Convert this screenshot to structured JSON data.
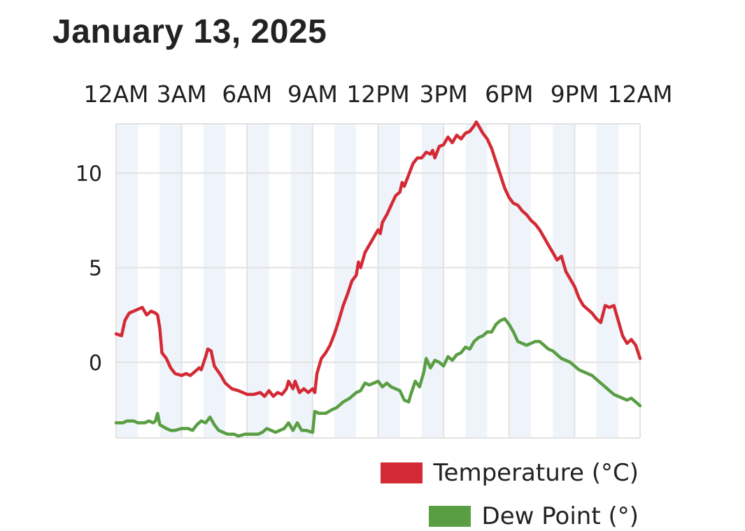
{
  "chart_data": {
    "type": "line",
    "title": "January 13, 2025",
    "x_tick_labels": [
      "12AM",
      "3AM",
      "6AM",
      "9AM",
      "12PM",
      "3PM",
      "6PM",
      "9PM",
      "12AM"
    ],
    "x_unit": "hours since midnight",
    "y_ticks": [
      0,
      5,
      10
    ],
    "ylim": [
      -4,
      12.6
    ],
    "xlim": [
      0,
      24
    ],
    "grid": true,
    "legend_position": "bottom-right",
    "series": [
      {
        "name": "Temperature (°C)",
        "color": "#d42a35",
        "points": [
          [
            0,
            1.5
          ],
          [
            0.25,
            1.4
          ],
          [
            0.4,
            2.2
          ],
          [
            0.6,
            2.6
          ],
          [
            0.8,
            2.7
          ],
          [
            1.0,
            2.8
          ],
          [
            1.2,
            2.9
          ],
          [
            1.4,
            2.5
          ],
          [
            1.6,
            2.7
          ],
          [
            1.8,
            2.6
          ],
          [
            1.9,
            2.5
          ],
          [
            2.0,
            1.8
          ],
          [
            2.1,
            0.5
          ],
          [
            2.3,
            0.2
          ],
          [
            2.5,
            -0.3
          ],
          [
            2.7,
            -0.6
          ],
          [
            3.0,
            -0.7
          ],
          [
            3.2,
            -0.6
          ],
          [
            3.4,
            -0.7
          ],
          [
            3.6,
            -0.5
          ],
          [
            3.8,
            -0.3
          ],
          [
            3.9,
            -0.4
          ],
          [
            4.1,
            0.3
          ],
          [
            4.2,
            0.7
          ],
          [
            4.35,
            0.6
          ],
          [
            4.5,
            -0.2
          ],
          [
            4.8,
            -0.7
          ],
          [
            5.0,
            -1.1
          ],
          [
            5.3,
            -1.4
          ],
          [
            5.6,
            -1.5
          ],
          [
            5.8,
            -1.6
          ],
          [
            6.0,
            -1.7
          ],
          [
            6.3,
            -1.7
          ],
          [
            6.6,
            -1.6
          ],
          [
            6.8,
            -1.8
          ],
          [
            7.0,
            -1.5
          ],
          [
            7.2,
            -1.8
          ],
          [
            7.4,
            -1.6
          ],
          [
            7.6,
            -1.7
          ],
          [
            7.8,
            -1.4
          ],
          [
            7.9,
            -1.0
          ],
          [
            8.1,
            -1.4
          ],
          [
            8.2,
            -1.0
          ],
          [
            8.4,
            -1.6
          ],
          [
            8.6,
            -1.4
          ],
          [
            8.8,
            -1.6
          ],
          [
            9.0,
            -1.4
          ],
          [
            9.1,
            -1.6
          ],
          [
            9.2,
            -0.6
          ],
          [
            9.4,
            0.2
          ],
          [
            9.6,
            0.5
          ],
          [
            9.8,
            0.9
          ],
          [
            10.0,
            1.5
          ],
          [
            10.2,
            2.2
          ],
          [
            10.4,
            3.0
          ],
          [
            10.6,
            3.6
          ],
          [
            10.8,
            4.3
          ],
          [
            11.0,
            4.6
          ],
          [
            11.1,
            5.3
          ],
          [
            11.2,
            5.0
          ],
          [
            11.4,
            5.8
          ],
          [
            11.6,
            6.2
          ],
          [
            11.8,
            6.6
          ],
          [
            12.0,
            7.0
          ],
          [
            12.1,
            6.8
          ],
          [
            12.2,
            7.4
          ],
          [
            12.4,
            7.8
          ],
          [
            12.6,
            8.3
          ],
          [
            12.8,
            8.8
          ],
          [
            13.0,
            9.0
          ],
          [
            13.1,
            9.5
          ],
          [
            13.2,
            9.3
          ],
          [
            13.4,
            9.9
          ],
          [
            13.6,
            10.5
          ],
          [
            13.8,
            10.8
          ],
          [
            14.0,
            10.8
          ],
          [
            14.2,
            11.1
          ],
          [
            14.4,
            11.0
          ],
          [
            14.5,
            11.2
          ],
          [
            14.6,
            10.8
          ],
          [
            14.8,
            11.4
          ],
          [
            15.0,
            11.5
          ],
          [
            15.2,
            11.9
          ],
          [
            15.4,
            11.6
          ],
          [
            15.6,
            12.0
          ],
          [
            15.8,
            11.8
          ],
          [
            16.0,
            12.1
          ],
          [
            16.2,
            12.2
          ],
          [
            16.4,
            12.5
          ],
          [
            16.5,
            12.7
          ],
          [
            16.6,
            12.5
          ],
          [
            16.8,
            12.1
          ],
          [
            17.0,
            11.8
          ],
          [
            17.2,
            11.3
          ],
          [
            17.4,
            10.6
          ],
          [
            17.6,
            9.9
          ],
          [
            17.8,
            9.2
          ],
          [
            18.0,
            8.7
          ],
          [
            18.2,
            8.4
          ],
          [
            18.4,
            8.3
          ],
          [
            18.6,
            8.0
          ],
          [
            18.8,
            7.8
          ],
          [
            19.0,
            7.5
          ],
          [
            19.2,
            7.3
          ],
          [
            19.4,
            7.0
          ],
          [
            19.6,
            6.6
          ],
          [
            19.8,
            6.2
          ],
          [
            20.0,
            5.8
          ],
          [
            20.2,
            5.4
          ],
          [
            20.4,
            5.6
          ],
          [
            20.6,
            4.8
          ],
          [
            20.8,
            4.4
          ],
          [
            21.0,
            4.0
          ],
          [
            21.2,
            3.4
          ],
          [
            21.4,
            3.0
          ],
          [
            21.6,
            2.8
          ],
          [
            21.8,
            2.6
          ],
          [
            22.0,
            2.3
          ],
          [
            22.2,
            2.1
          ],
          [
            22.4,
            3.0
          ],
          [
            22.6,
            2.9
          ],
          [
            22.8,
            3.0
          ],
          [
            23.0,
            2.2
          ],
          [
            23.2,
            1.4
          ],
          [
            23.4,
            1.0
          ],
          [
            23.6,
            1.2
          ],
          [
            23.8,
            0.9
          ],
          [
            24.0,
            0.2
          ]
        ]
      },
      {
        "name": "Dew Point (°)",
        "color": "#5a9e44",
        "points": [
          [
            0,
            -3.2
          ],
          [
            0.3,
            -3.2
          ],
          [
            0.5,
            -3.1
          ],
          [
            0.8,
            -3.1
          ],
          [
            1.0,
            -3.2
          ],
          [
            1.3,
            -3.2
          ],
          [
            1.5,
            -3.1
          ],
          [
            1.7,
            -3.2
          ],
          [
            1.8,
            -3.1
          ],
          [
            1.9,
            -2.7
          ],
          [
            2.0,
            -3.3
          ],
          [
            2.3,
            -3.5
          ],
          [
            2.5,
            -3.6
          ],
          [
            2.7,
            -3.6
          ],
          [
            3.0,
            -3.5
          ],
          [
            3.3,
            -3.5
          ],
          [
            3.5,
            -3.6
          ],
          [
            3.7,
            -3.3
          ],
          [
            3.9,
            -3.1
          ],
          [
            4.1,
            -3.2
          ],
          [
            4.3,
            -2.9
          ],
          [
            4.5,
            -3.3
          ],
          [
            4.7,
            -3.6
          ],
          [
            4.9,
            -3.7
          ],
          [
            5.1,
            -3.8
          ],
          [
            5.4,
            -3.8
          ],
          [
            5.6,
            -3.9
          ],
          [
            5.9,
            -3.8
          ],
          [
            6.2,
            -3.8
          ],
          [
            6.5,
            -3.8
          ],
          [
            6.7,
            -3.7
          ],
          [
            6.9,
            -3.5
          ],
          [
            7.1,
            -3.6
          ],
          [
            7.3,
            -3.7
          ],
          [
            7.5,
            -3.6
          ],
          [
            7.7,
            -3.5
          ],
          [
            7.9,
            -3.2
          ],
          [
            8.1,
            -3.6
          ],
          [
            8.3,
            -3.2
          ],
          [
            8.5,
            -3.6
          ],
          [
            8.7,
            -3.6
          ],
          [
            9.0,
            -3.7
          ],
          [
            9.1,
            -2.6
          ],
          [
            9.3,
            -2.7
          ],
          [
            9.6,
            -2.7
          ],
          [
            9.9,
            -2.5
          ],
          [
            10.1,
            -2.4
          ],
          [
            10.4,
            -2.1
          ],
          [
            10.7,
            -1.9
          ],
          [
            11.0,
            -1.6
          ],
          [
            11.2,
            -1.5
          ],
          [
            11.4,
            -1.1
          ],
          [
            11.6,
            -1.2
          ],
          [
            11.8,
            -1.1
          ],
          [
            12.0,
            -1.0
          ],
          [
            12.2,
            -1.3
          ],
          [
            12.4,
            -1.1
          ],
          [
            12.6,
            -1.3
          ],
          [
            12.8,
            -1.4
          ],
          [
            13.0,
            -1.5
          ],
          [
            13.2,
            -2.0
          ],
          [
            13.4,
            -2.1
          ],
          [
            13.5,
            -1.7
          ],
          [
            13.7,
            -1.0
          ],
          [
            13.9,
            -1.3
          ],
          [
            14.1,
            -0.5
          ],
          [
            14.2,
            0.2
          ],
          [
            14.4,
            -0.3
          ],
          [
            14.6,
            0.1
          ],
          [
            14.8,
            0.0
          ],
          [
            15.0,
            -0.2
          ],
          [
            15.2,
            0.3
          ],
          [
            15.4,
            0.1
          ],
          [
            15.6,
            0.4
          ],
          [
            15.8,
            0.5
          ],
          [
            16.0,
            0.8
          ],
          [
            16.2,
            0.7
          ],
          [
            16.4,
            1.1
          ],
          [
            16.6,
            1.3
          ],
          [
            16.8,
            1.4
          ],
          [
            17.0,
            1.6
          ],
          [
            17.2,
            1.6
          ],
          [
            17.4,
            2.0
          ],
          [
            17.6,
            2.2
          ],
          [
            17.8,
            2.3
          ],
          [
            18.0,
            2.0
          ],
          [
            18.2,
            1.6
          ],
          [
            18.4,
            1.1
          ],
          [
            18.6,
            1.0
          ],
          [
            18.8,
            0.9
          ],
          [
            19.0,
            1.0
          ],
          [
            19.2,
            1.1
          ],
          [
            19.4,
            1.1
          ],
          [
            19.6,
            0.9
          ],
          [
            19.8,
            0.7
          ],
          [
            20.0,
            0.6
          ],
          [
            20.2,
            0.4
          ],
          [
            20.4,
            0.2
          ],
          [
            20.6,
            0.1
          ],
          [
            20.8,
            0.0
          ],
          [
            21.0,
            -0.2
          ],
          [
            21.2,
            -0.4
          ],
          [
            21.4,
            -0.5
          ],
          [
            21.6,
            -0.6
          ],
          [
            21.8,
            -0.7
          ],
          [
            22.0,
            -0.9
          ],
          [
            22.2,
            -1.1
          ],
          [
            22.4,
            -1.3
          ],
          [
            22.6,
            -1.5
          ],
          [
            22.8,
            -1.7
          ],
          [
            23.0,
            -1.8
          ],
          [
            23.2,
            -1.9
          ],
          [
            23.4,
            -2.0
          ],
          [
            23.6,
            -1.9
          ],
          [
            23.8,
            -2.1
          ],
          [
            24.0,
            -2.3
          ]
        ]
      }
    ]
  },
  "legend": {
    "temperature_label": "Temperature (°C)",
    "dew_point_label": "Dew Point (°)"
  },
  "colors": {
    "temperature": "#d42a35",
    "dew_point": "#5a9e44",
    "band": "#eef4fa",
    "grid": "#e2e2e2"
  }
}
